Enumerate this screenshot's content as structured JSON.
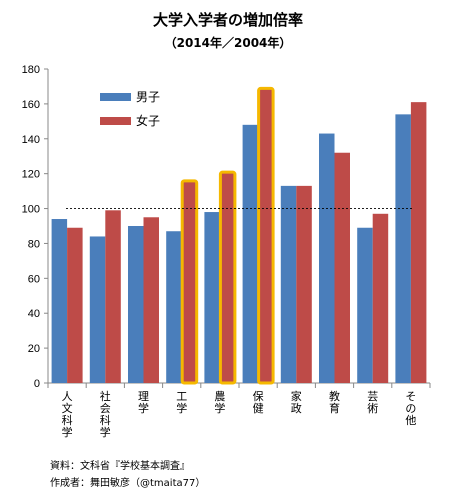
{
  "chart_data": {
    "type": "bar",
    "title": "大学入学者の増加倍率",
    "subtitle": "（2014年／2004年）",
    "categories": [
      "人文科学",
      "社会科学",
      "理学",
      "工学",
      "農学",
      "保健",
      "家政",
      "教育",
      "芸術",
      "その他"
    ],
    "series": [
      {
        "name": "男子",
        "color": "#4a7ebb",
        "values": [
          94,
          84,
          90,
          87,
          98,
          148,
          113,
          143,
          89,
          154
        ]
      },
      {
        "name": "女子",
        "color": "#be4b48",
        "values": [
          89,
          99,
          95,
          115,
          120,
          168,
          113,
          132,
          97,
          161
        ]
      }
    ],
    "highlighted_categories": [
      "工学",
      "農学",
      "保健"
    ],
    "highlight_color": "#f5b800",
    "reference_line": {
      "value": 100,
      "style": "dashed"
    },
    "ylim": [
      0,
      180
    ],
    "yticks": [
      0,
      20,
      40,
      60,
      80,
      100,
      120,
      140,
      160,
      180
    ],
    "legend_position": "top-left",
    "xlabel": "",
    "ylabel": "",
    "grid": false
  },
  "footer": {
    "source": "資料：文科省『学校基本調査』",
    "author": "作成者：舞田敏彦（@tmaita77）"
  }
}
